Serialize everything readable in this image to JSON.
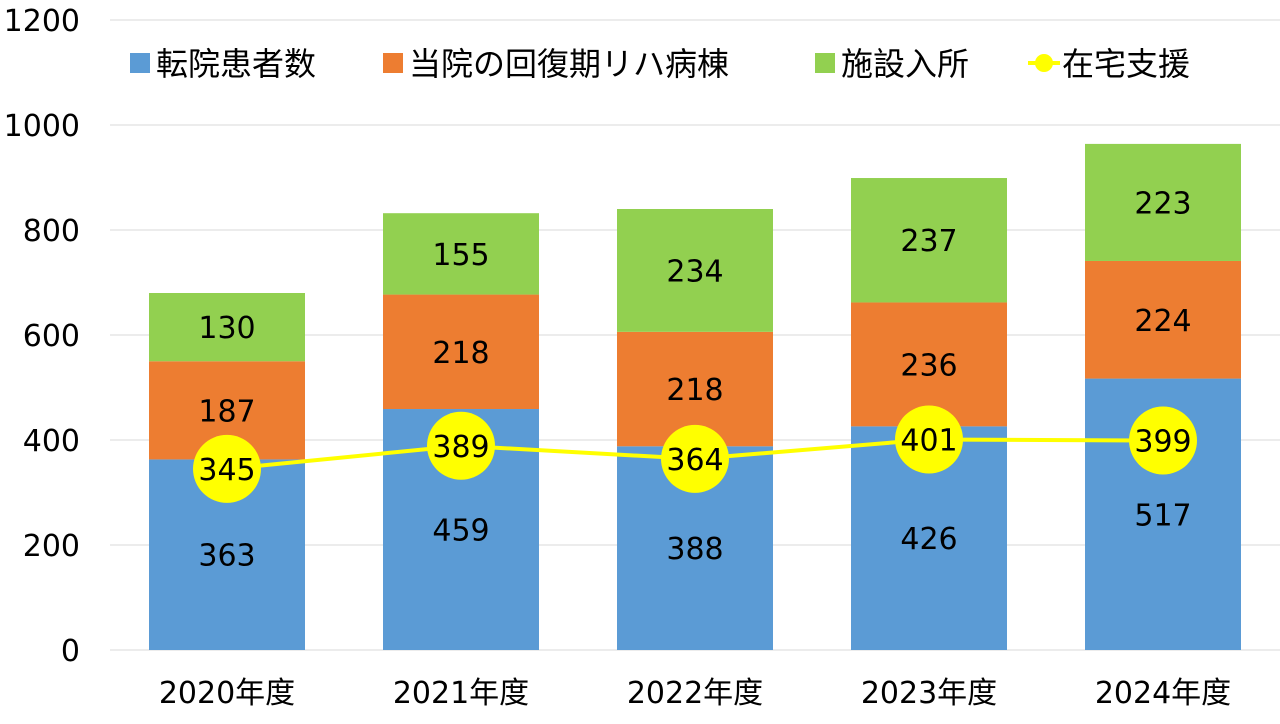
{
  "chart_data": {
    "type": "bar",
    "stacked": true,
    "categories": [
      "2020年度",
      "2021年度",
      "2022年度",
      "2023年度",
      "2024年度"
    ],
    "series": [
      {
        "name": "転院患者数",
        "kind": "bar",
        "color": "#5B9BD5",
        "values": [
          363,
          459,
          388,
          426,
          517
        ]
      },
      {
        "name": "当院の回復期リハ病棟",
        "kind": "bar",
        "color": "#ED7D31",
        "values": [
          187,
          218,
          218,
          236,
          224
        ]
      },
      {
        "name": "施設入所",
        "kind": "bar",
        "color": "#92D050",
        "values": [
          130,
          155,
          234,
          237,
          223
        ]
      },
      {
        "name": "在宅支援",
        "kind": "line",
        "color": "#FFFF00",
        "values": [
          345,
          389,
          364,
          401,
          399
        ]
      }
    ],
    "yticks": [
      "0",
      "200",
      "400",
      "600",
      "800",
      "1000",
      "1200"
    ],
    "ylim": [
      0,
      1200
    ],
    "grid": true,
    "legend": "top",
    "data_labels": true,
    "title": "",
    "xlabel": "",
    "ylabel": ""
  }
}
